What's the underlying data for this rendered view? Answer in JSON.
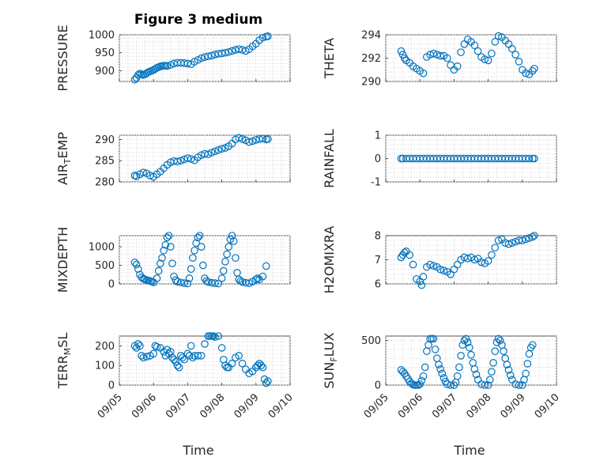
{
  "figure_title": "Figure 3 medium",
  "marker_color": "#0072BD",
  "xaxis": {
    "label": "Time",
    "ticks": [
      "09/05",
      "09/06",
      "09/07",
      "09/08",
      "09/09",
      "09/10"
    ],
    "range_days": [
      5,
      10
    ]
  },
  "chart_data": [
    {
      "type": "scatter",
      "ylabel": "PRESSURE",
      "ylim": [
        870,
        1000
      ],
      "yticks": [
        900,
        950,
        1000
      ],
      "xlim": [
        5,
        10
      ],
      "x": [
        5.45,
        5.5,
        5.55,
        5.6,
        5.65,
        5.7,
        5.75,
        5.8,
        5.85,
        5.9,
        5.95,
        6.0,
        6.05,
        6.1,
        6.15,
        6.2,
        6.25,
        6.3,
        6.35,
        6.4,
        6.5,
        6.6,
        6.7,
        6.8,
        6.9,
        7.0,
        7.1,
        7.2,
        7.3,
        7.4,
        7.5,
        7.6,
        7.7,
        7.8,
        7.9,
        8.0,
        8.1,
        8.2,
        8.3,
        8.4,
        8.5,
        8.6,
        8.7,
        8.8,
        8.9,
        9.0,
        9.1,
        9.2,
        9.3,
        9.35
      ],
      "y": [
        875,
        880,
        888,
        892,
        890,
        888,
        890,
        893,
        896,
        898,
        900,
        902,
        905,
        908,
        910,
        912,
        913,
        914,
        914,
        913,
        916,
        920,
        922,
        922,
        921,
        920,
        918,
        925,
        930,
        935,
        938,
        940,
        942,
        945,
        947,
        948,
        950,
        952,
        955,
        958,
        960,
        958,
        955,
        960,
        968,
        975,
        985,
        992,
        995,
        996
      ]
    },
    {
      "type": "scatter",
      "ylabel": "THETA",
      "ylim": [
        290,
        294
      ],
      "yticks": [
        290,
        292,
        294
      ],
      "xlim": [
        5,
        10
      ],
      "x": [
        5.45,
        5.5,
        5.55,
        5.6,
        5.7,
        5.8,
        5.9,
        6.0,
        6.1,
        6.2,
        6.3,
        6.4,
        6.5,
        6.6,
        6.7,
        6.8,
        6.9,
        7.0,
        7.1,
        7.2,
        7.3,
        7.4,
        7.5,
        7.6,
        7.7,
        7.8,
        7.9,
        8.0,
        8.1,
        8.2,
        8.3,
        8.4,
        8.5,
        8.6,
        8.7,
        8.8,
        8.9,
        9.0,
        9.1,
        9.2,
        9.3,
        9.35
      ],
      "y": [
        292.6,
        292.3,
        292.0,
        291.8,
        291.6,
        291.3,
        291.1,
        290.9,
        290.7,
        292.1,
        292.3,
        292.4,
        292.3,
        292.2,
        292.2,
        292.0,
        291.4,
        291.0,
        291.3,
        292.5,
        293.2,
        293.6,
        293.4,
        293.1,
        292.6,
        292.1,
        291.9,
        291.8,
        292.4,
        293.4,
        293.9,
        293.8,
        293.5,
        293.2,
        292.8,
        292.3,
        291.7,
        291.0,
        290.7,
        290.6,
        290.9,
        291.1
      ]
    },
    {
      "type": "scatter",
      "ylabel": "AIR_TEMP",
      "ylabel_main": "AIR",
      "ylabel_sub": "T",
      "ylabel_tail": "EMP",
      "ylim": [
        280,
        291
      ],
      "yticks": [
        280,
        285,
        290
      ],
      "xlim": [
        5,
        10
      ],
      "x": [
        5.45,
        5.5,
        5.6,
        5.7,
        5.8,
        5.9,
        6.0,
        6.1,
        6.2,
        6.3,
        6.4,
        6.5,
        6.6,
        6.7,
        6.8,
        6.9,
        7.0,
        7.1,
        7.2,
        7.3,
        7.4,
        7.5,
        7.6,
        7.7,
        7.8,
        7.9,
        8.0,
        8.1,
        8.2,
        8.3,
        8.4,
        8.5,
        8.6,
        8.7,
        8.8,
        8.9,
        9.0,
        9.1,
        9.2,
        9.3,
        9.35
      ],
      "y": [
        281.5,
        281.3,
        281.8,
        282.2,
        282.0,
        281.5,
        281.2,
        281.8,
        282.4,
        283.2,
        284.0,
        284.6,
        284.9,
        284.8,
        285.0,
        285.3,
        285.6,
        285.4,
        285.1,
        285.8,
        286.3,
        286.6,
        286.5,
        286.9,
        287.2,
        287.5,
        287.8,
        288.0,
        288.4,
        289.0,
        290.0,
        290.4,
        290.1,
        289.8,
        289.4,
        289.6,
        289.9,
        290.1,
        290.2,
        290.0,
        290.1
      ]
    },
    {
      "type": "scatter",
      "ylabel": "RAINFALL",
      "ylim": [
        -1,
        1
      ],
      "yticks": [
        -1,
        0,
        1
      ],
      "xlim": [
        5,
        10
      ],
      "x": [
        5.45,
        5.5,
        5.6,
        5.7,
        5.8,
        5.9,
        6.0,
        6.1,
        6.2,
        6.3,
        6.4,
        6.5,
        6.6,
        6.7,
        6.8,
        6.9,
        7.0,
        7.1,
        7.2,
        7.3,
        7.4,
        7.5,
        7.6,
        7.7,
        7.8,
        7.9,
        8.0,
        8.1,
        8.2,
        8.3,
        8.4,
        8.5,
        8.6,
        8.7,
        8.8,
        8.9,
        9.0,
        9.1,
        9.2,
        9.3,
        9.35
      ],
      "y": [
        0,
        0,
        0,
        0,
        0,
        0,
        0,
        0,
        0,
        0,
        0,
        0,
        0,
        0,
        0,
        0,
        0,
        0,
        0,
        0,
        0,
        0,
        0,
        0,
        0,
        0,
        0,
        0,
        0,
        0,
        0,
        0,
        0,
        0,
        0,
        0,
        0,
        0,
        0,
        0,
        0
      ]
    },
    {
      "type": "scatter",
      "ylabel": "MIXDEPTH",
      "ylim": [
        0,
        1300
      ],
      "yticks": [
        0,
        500,
        1000
      ],
      "xlim": [
        5,
        10
      ],
      "x": [
        5.45,
        5.5,
        5.55,
        5.6,
        5.65,
        5.7,
        5.75,
        5.8,
        5.85,
        5.9,
        5.95,
        6.0,
        6.1,
        6.15,
        6.2,
        6.25,
        6.3,
        6.35,
        6.4,
        6.45,
        6.5,
        6.55,
        6.6,
        6.65,
        6.7,
        6.8,
        6.9,
        7.0,
        7.05,
        7.1,
        7.15,
        7.2,
        7.25,
        7.3,
        7.35,
        7.4,
        7.45,
        7.5,
        7.55,
        7.6,
        7.7,
        7.8,
        7.9,
        8.0,
        8.05,
        8.1,
        8.15,
        8.2,
        8.25,
        8.3,
        8.35,
        8.4,
        8.45,
        8.5,
        8.55,
        8.6,
        8.7,
        8.8,
        8.9,
        9.0,
        9.05,
        9.1,
        9.2,
        9.3
      ],
      "y": [
        580,
        520,
        400,
        250,
        180,
        140,
        120,
        100,
        90,
        80,
        60,
        40,
        150,
        350,
        550,
        700,
        900,
        1050,
        1250,
        1300,
        1000,
        550,
        200,
        100,
        60,
        40,
        20,
        10,
        150,
        400,
        700,
        900,
        1100,
        1250,
        1300,
        1000,
        500,
        150,
        80,
        50,
        30,
        20,
        10,
        150,
        350,
        600,
        800,
        1000,
        1200,
        1300,
        1150,
        700,
        300,
        120,
        80,
        50,
        30,
        20,
        60,
        120,
        150,
        120,
        200,
        480
      ]
    },
    {
      "type": "scatter",
      "ylabel": "H2OMIXRA",
      "ylim": [
        6,
        8
      ],
      "yticks": [
        6,
        7,
        8
      ],
      "xlim": [
        5,
        10
      ],
      "x": [
        5.45,
        5.5,
        5.55,
        5.6,
        5.7,
        5.8,
        5.9,
        6.0,
        6.05,
        6.1,
        6.2,
        6.3,
        6.4,
        6.5,
        6.6,
        6.7,
        6.8,
        6.9,
        7.0,
        7.1,
        7.2,
        7.3,
        7.4,
        7.5,
        7.6,
        7.7,
        7.8,
        7.9,
        8.0,
        8.1,
        8.2,
        8.3,
        8.4,
        8.5,
        8.6,
        8.7,
        8.8,
        8.9,
        9.0,
        9.1,
        9.2,
        9.3,
        9.35
      ],
      "y": [
        7.1,
        7.2,
        7.3,
        7.35,
        7.2,
        6.8,
        6.2,
        6.1,
        5.95,
        6.3,
        6.7,
        6.8,
        6.75,
        6.7,
        6.6,
        6.55,
        6.5,
        6.4,
        6.6,
        6.8,
        7.0,
        7.1,
        7.05,
        7.1,
        7.0,
        7.05,
        6.9,
        6.85,
        6.95,
        7.2,
        7.5,
        7.8,
        7.85,
        7.7,
        7.65,
        7.7,
        7.75,
        7.8,
        7.8,
        7.85,
        7.9,
        7.95,
        8.0
      ]
    },
    {
      "type": "scatter",
      "ylabel": "TERR_MSL",
      "ylabel_main": "TERR",
      "ylabel_sub": "M",
      "ylabel_tail": "SL",
      "ylim": [
        0,
        250
      ],
      "yticks": [
        0,
        100,
        200
      ],
      "xlim": [
        5,
        10
      ],
      "x": [
        5.45,
        5.5,
        5.55,
        5.6,
        5.65,
        5.7,
        5.8,
        5.9,
        6.0,
        6.05,
        6.1,
        6.2,
        6.3,
        6.35,
        6.4,
        6.45,
        6.5,
        6.55,
        6.6,
        6.65,
        6.7,
        6.75,
        6.8,
        6.85,
        6.9,
        7.0,
        7.05,
        7.1,
        7.15,
        7.2,
        7.3,
        7.4,
        7.5,
        7.6,
        7.65,
        7.7,
        7.75,
        7.8,
        7.9,
        8.0,
        8.05,
        8.1,
        8.15,
        8.2,
        8.3,
        8.4,
        8.5,
        8.6,
        8.7,
        8.8,
        8.9,
        9.0,
        9.05,
        9.1,
        9.15,
        9.2,
        9.25,
        9.3,
        9.35
      ],
      "y": [
        200,
        190,
        210,
        200,
        150,
        140,
        145,
        150,
        160,
        200,
        195,
        190,
        170,
        150,
        180,
        160,
        170,
        140,
        130,
        120,
        100,
        90,
        150,
        140,
        130,
        160,
        150,
        200,
        140,
        150,
        150,
        150,
        210,
        250,
        250,
        250,
        250,
        245,
        250,
        190,
        130,
        100,
        90,
        90,
        110,
        140,
        150,
        110,
        80,
        60,
        70,
        90,
        100,
        110,
        100,
        90,
        30,
        10,
        20
      ]
    },
    {
      "type": "scatter",
      "ylabel": "SUN_FLUX",
      "ylabel_main": "SUN",
      "ylabel_sub": "F",
      "ylabel_tail": "LUX",
      "ylim": [
        0,
        550
      ],
      "yticks": [
        0,
        500
      ],
      "xlim": [
        5,
        10
      ],
      "x": [
        5.45,
        5.5,
        5.55,
        5.6,
        5.65,
        5.7,
        5.75,
        5.8,
        5.85,
        5.9,
        5.95,
        6.0,
        6.05,
        6.1,
        6.15,
        6.2,
        6.25,
        6.3,
        6.35,
        6.4,
        6.45,
        6.5,
        6.55,
        6.6,
        6.65,
        6.7,
        6.75,
        6.8,
        6.9,
        7.0,
        7.05,
        7.1,
        7.15,
        7.2,
        7.25,
        7.3,
        7.35,
        7.4,
        7.45,
        7.5,
        7.55,
        7.6,
        7.65,
        7.7,
        7.8,
        7.9,
        8.0,
        8.05,
        8.1,
        8.15,
        8.2,
        8.25,
        8.3,
        8.35,
        8.4,
        8.45,
        8.5,
        8.55,
        8.6,
        8.65,
        8.7,
        8.8,
        8.9,
        9.0,
        9.05,
        9.1,
        9.15,
        9.2,
        9.25,
        9.3
      ],
      "y": [
        170,
        150,
        130,
        100,
        70,
        40,
        20,
        5,
        0,
        0,
        0,
        10,
        50,
        100,
        200,
        380,
        450,
        520,
        520,
        520,
        400,
        300,
        230,
        180,
        130,
        80,
        40,
        10,
        0,
        0,
        30,
        100,
        200,
        330,
        450,
        500,
        520,
        480,
        420,
        340,
        250,
        180,
        120,
        60,
        10,
        0,
        0,
        60,
        150,
        250,
        380,
        480,
        520,
        500,
        450,
        380,
        300,
        230,
        170,
        110,
        60,
        10,
        0,
        0,
        60,
        130,
        240,
        350,
        420,
        450
      ]
    }
  ]
}
